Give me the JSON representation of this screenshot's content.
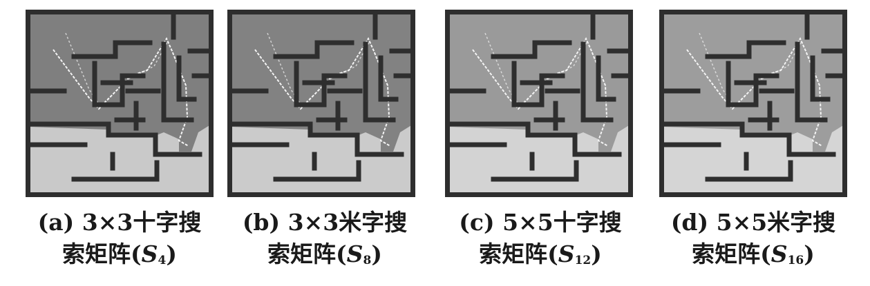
{
  "figure": {
    "panels": [
      {
        "line1": "(a) 3×3十字搜",
        "line2_prefix": "索矩阵(",
        "symbol": "S",
        "subscript": "4",
        "line2_suffix": ")",
        "fill_shade": "#7f7f7f",
        "open_shade": "#c9c9c9"
      },
      {
        "line1": "(b) 3×3米字搜",
        "line2_prefix": "索矩阵(",
        "symbol": "S",
        "subscript": "8",
        "line2_suffix": ")",
        "fill_shade": "#828282",
        "open_shade": "#cbcbcb"
      },
      {
        "line1": "(c) 5×5十字搜",
        "line2_prefix": "索矩阵(",
        "symbol": "S",
        "subscript": "12",
        "line2_suffix": ")",
        "fill_shade": "#9a9a9a",
        "open_shade": "#d3d3d3"
      },
      {
        "line1": "(d) 5×5米字搜",
        "line2_prefix": "索矩阵(",
        "symbol": "S",
        "subscript": "16",
        "line2_suffix": ")",
        "fill_shade": "#9d9d9d",
        "open_shade": "#d5d5d5"
      }
    ],
    "colors": {
      "wall": "#2e2e2e",
      "path": "#f4f4f4"
    }
  }
}
